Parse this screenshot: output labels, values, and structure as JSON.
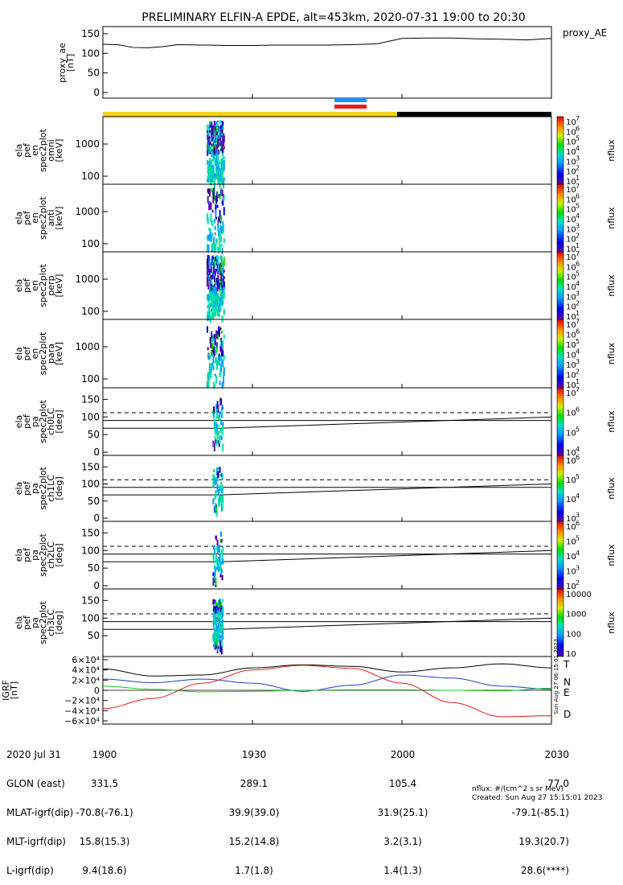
{
  "title": "PRELIMINARY ELFIN-A EPDE, alt=453km, 2020-07-31 19:00 to 20:30",
  "colors": {
    "yellow_bar": "#f5d21e",
    "black_bar": "#000000",
    "fast_blue": "#1e8cff",
    "fast_red": "#e61e1e",
    "gei_T": "#000000",
    "gei_N": "#1e3cc8",
    "gei_E": "#1ec81e",
    "gei_D": "#dc1e1e"
  },
  "chart_data": [
    {
      "type": "line",
      "name": "proxy_ae",
      "ylabel": "proxy_ae [nT]",
      "legend": "proxy_AE",
      "yticks": [
        "150",
        "100",
        "50",
        "0"
      ],
      "ylim": [
        0,
        160
      ],
      "x_minutes": [
        0,
        3,
        6,
        9,
        12,
        15,
        20,
        25,
        30,
        35,
        40,
        45,
        50,
        55,
        60,
        65,
        70,
        75,
        80,
        85,
        90
      ],
      "values": [
        123,
        122,
        115,
        114,
        117,
        122,
        121,
        120,
        120,
        121,
        121,
        121,
        122,
        124,
        138,
        139,
        139,
        137,
        136,
        134,
        138
      ]
    },
    {
      "type": "heatmap",
      "name": "ela_pef_en_spec2plot_omni",
      "ylabel": "ela pef en spec2plot omni [keV]",
      "yscale": "log",
      "yticks": [
        "1000",
        "100"
      ],
      "zlabel": "nflux",
      "ztick_exponents": [
        "7",
        "6",
        "5",
        "4",
        "3",
        "2",
        "1"
      ],
      "burst": [
        {
          "t0": 22,
          "t1": 23.5,
          "emin": 50,
          "emax": 8000,
          "level": "mixed"
        }
      ]
    },
    {
      "type": "heatmap",
      "name": "ela_pef_en_spec2plot_anti",
      "ylabel": "ela pef en spec2plot anti [keV]",
      "yscale": "log",
      "yticks": [
        "1000",
        "100"
      ],
      "zlabel": "nflux",
      "ztick_exponents": [
        "7",
        "6",
        "5",
        "4",
        "3",
        "2",
        "1"
      ]
    },
    {
      "type": "heatmap",
      "name": "ela_pef_en_spec2plot_perp",
      "ylabel": "ela pef en spec2plot perp [keV]",
      "yscale": "log",
      "yticks": [
        "1000",
        "100"
      ],
      "zlabel": "nflux",
      "ztick_exponents": [
        "7",
        "6",
        "5",
        "4",
        "3",
        "2",
        "1"
      ]
    },
    {
      "type": "heatmap",
      "name": "ela_pef_en_spec2plot_para",
      "ylabel": "ela pef en spec2plot para [keV]",
      "yscale": "log",
      "yticks": [
        "1000",
        "100"
      ],
      "zlabel": "nflux",
      "ztick_exponents": [
        "7",
        "6",
        "5",
        "4",
        "3",
        "2",
        "1"
      ]
    },
    {
      "type": "heatmap",
      "name": "ela_pef_pa_spec2plot_ch0LC",
      "ylabel": "ela pef pa spec2plot ch0LC [deg]",
      "yticks": [
        "150",
        "100",
        "50",
        "0"
      ],
      "ylim": [
        0,
        180
      ],
      "zlabel": "nflux",
      "ztick_exponents": [
        "7",
        "6",
        "5",
        "4"
      ]
    },
    {
      "type": "heatmap",
      "name": "ela_pef_pa_spec2plot_ch1LC",
      "ylabel": "ela pef pa spec2plot ch1LC [deg]",
      "yticks": [
        "150",
        "100",
        "50",
        "0"
      ],
      "ylim": [
        0,
        180
      ],
      "zlabel": "nflux",
      "ztick_exponents": [
        "6",
        "5",
        "4",
        "3"
      ]
    },
    {
      "type": "heatmap",
      "name": "ela_pef_pa_spec2plot_ch2LC",
      "ylabel": "ela pef pa spec2plot ch2LC [deg]",
      "yticks": [
        "150",
        "100",
        "50",
        "0"
      ],
      "ylim": [
        0,
        180
      ],
      "zlabel": "nflux",
      "ztick_exponents": [
        "6",
        "5",
        "4",
        "3",
        "2"
      ]
    },
    {
      "type": "heatmap",
      "name": "ela_pef_pa_spec2plot_ch3LC",
      "ylabel": "ela pef pa spec2plot ch3LC [deg]",
      "yticks": [
        "150",
        "100",
        "50"
      ],
      "ylim": [
        0,
        180
      ],
      "zlabel": "nflux",
      "zticks_plain": [
        "10000",
        "1000",
        "100",
        "10"
      ]
    },
    {
      "type": "line",
      "name": "GEI",
      "ylabel": "IGRF [nT]",
      "ylim": [
        -60000,
        60000
      ],
      "yticks": [
        "6×10⁴",
        "4×10⁴",
        "2×10⁴",
        "0",
        "−2×10⁴",
        "−4×10⁴",
        "−6×10⁴"
      ],
      "x_minutes": [
        0,
        10,
        20,
        30,
        40,
        50,
        60,
        70,
        80,
        90
      ],
      "series": [
        {
          "name": "T",
          "values": [
            42000,
            28000,
            30000,
            44000,
            50000,
            47000,
            36000,
            44000,
            52000,
            44000
          ]
        },
        {
          "name": "N",
          "values": [
            22000,
            15000,
            22000,
            14000,
            -2000,
            10000,
            30000,
            24000,
            8000,
            2000
          ]
        },
        {
          "name": "E",
          "values": [
            8000,
            2000,
            -3000,
            -2000,
            0,
            1000,
            1000,
            0,
            -1000,
            4000
          ]
        },
        {
          "name": "D",
          "values": [
            -36000,
            -16000,
            14000,
            40000,
            49000,
            43000,
            14000,
            -24000,
            -52000,
            -50000
          ]
        }
      ]
    }
  ],
  "x_axis": {
    "ticks": [
      "1900",
      "1930",
      "2000",
      "2030"
    ],
    "rows": [
      {
        "label": "2020 Jul 31",
        "values": [
          "",
          "",
          "",
          ""
        ]
      },
      {
        "label": "GLON (east)",
        "values": [
          "331.5",
          "289.1",
          "105.4",
          "77.0"
        ]
      },
      {
        "label": "MLAT-igrf(dip)",
        "values": [
          "-70.8(-76.1)",
          "39.9(39.0)",
          "31.9(25.1)",
          "-79.1(-85.1)"
        ]
      },
      {
        "label": "MLT-igrf(dip)",
        "values": [
          "15.8(15.3)",
          "15.2(14.8)",
          "3.2(3.1)",
          "19.3(20.7)"
        ]
      },
      {
        "label": "L-igrf(dip)",
        "values": [
          "9.4(18.6)",
          "1.7(1.8)",
          "1.4(1.3)",
          "28.6(****)"
        ]
      }
    ]
  },
  "footer": {
    "units": "nflux: #/(cm^2 s sr MeV)",
    "created": "Created: Sun Aug 27 15:15:01 2023",
    "stamp": "Sun Aug 27 06:15:01 2023"
  }
}
